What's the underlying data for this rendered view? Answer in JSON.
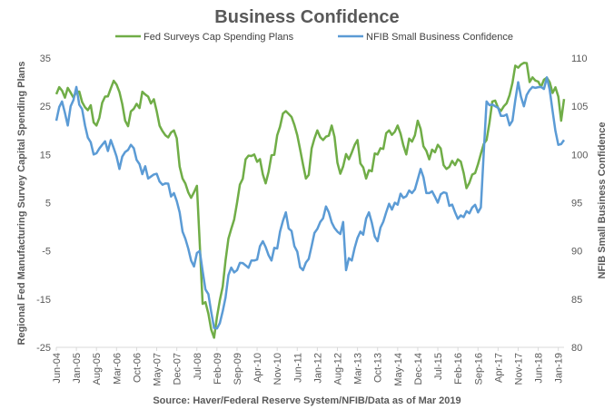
{
  "chart_data": {
    "type": "line",
    "title": "Business Confidence",
    "source": "Source: Haver/Federal Reserve System/NFIB/Data as of Mar 2019",
    "ylabel_left": "Regional Fed Manufacturing Survey Capital Spending Plans",
    "ylabel_right": "NFIB Small Business Confidence",
    "ylim_left": [
      -25,
      35
    ],
    "ylim_right": [
      80,
      110
    ],
    "yticks_left": [
      35,
      25,
      15,
      5,
      -5,
      -15,
      -25
    ],
    "yticks_right": [
      110,
      105,
      100,
      95,
      90,
      85,
      80
    ],
    "x_tick_labels": [
      "Jun-04",
      "Jan-05",
      "Aug-05",
      "Mar-06",
      "Oct-06",
      "May-07",
      "Dec-07",
      "Jul-08",
      "Feb-09",
      "Sep-09",
      "Apr-10",
      "Nov-10",
      "Jun-11",
      "Jan-12",
      "Aug-12",
      "Mar-13",
      "Oct-13",
      "May-14",
      "Dec-14",
      "Jul-15",
      "Feb-16",
      "Sep-16",
      "Apr-17",
      "Nov-17",
      "Jun-18",
      "Jan-19"
    ],
    "x_start": "Jun-04",
    "x_end": "Mar-19",
    "grid": false,
    "legend_position": "top",
    "series": [
      {
        "name": "Fed Surveys Cap Spending Plans",
        "axis": "left",
        "color": "#70AD47",
        "anchors": [
          [
            "Jun-04",
            27.5
          ],
          [
            "Jan-05",
            28
          ],
          [
            "Aug-05",
            21
          ],
          [
            "Nov-05",
            27
          ],
          [
            "Mar-06",
            29.5
          ],
          [
            "Jun-06",
            22
          ],
          [
            "Oct-06",
            25.5
          ],
          [
            "Feb-07",
            27
          ],
          [
            "May-07",
            24
          ],
          [
            "Aug-07",
            19
          ],
          [
            "Nov-07",
            20
          ],
          [
            "Feb-08",
            10
          ],
          [
            "May-08",
            6
          ],
          [
            "Jul-08",
            8.5
          ],
          [
            "Sep-08",
            -16
          ],
          [
            "Nov-08",
            -18
          ],
          [
            "Jan-09",
            -23
          ],
          [
            "May-09",
            -7
          ],
          [
            "Sep-09",
            5
          ],
          [
            "Dec-09",
            14
          ],
          [
            "Mar-10",
            15
          ],
          [
            "Jul-10",
            9
          ],
          [
            "Nov-10",
            19
          ],
          [
            "Feb-11",
            24
          ],
          [
            "Jun-11",
            19
          ],
          [
            "Sep-11",
            10
          ],
          [
            "Jan-12",
            20
          ],
          [
            "Mar-12",
            18
          ],
          [
            "Jun-12",
            21
          ],
          [
            "Sep-12",
            11
          ],
          [
            "Dec-12",
            14
          ],
          [
            "Mar-13",
            18
          ],
          [
            "Jun-13",
            10
          ],
          [
            "Oct-13",
            15
          ],
          [
            "Feb-14",
            20
          ],
          [
            "May-14",
            21
          ],
          [
            "Aug-14",
            15
          ],
          [
            "Dec-14",
            22
          ],
          [
            "Apr-15",
            14
          ],
          [
            "Jul-15",
            17
          ],
          [
            "Oct-15",
            12
          ],
          [
            "Feb-16",
            14
          ],
          [
            "May-16",
            8
          ],
          [
            "Sep-16",
            13
          ],
          [
            "Dec-16",
            18
          ],
          [
            "Feb-17",
            26
          ],
          [
            "Jun-17",
            25
          ],
          [
            "Nov-17",
            33
          ],
          [
            "Jan-18",
            34
          ],
          [
            "Apr-18",
            31
          ],
          [
            "Jul-18",
            29
          ],
          [
            "Oct-18",
            30
          ],
          [
            "Jan-19",
            27
          ],
          [
            "Feb-19",
            22
          ],
          [
            "Mar-19",
            26.5
          ]
        ]
      },
      {
        "name": "NFIB Small Business Confidence",
        "axis": "right",
        "color": "#5B9BD5",
        "anchors": [
          [
            "Jun-04",
            103.5
          ],
          [
            "Aug-04",
            105.5
          ],
          [
            "Oct-04",
            103
          ],
          [
            "Jan-05",
            107
          ],
          [
            "Apr-05",
            103
          ],
          [
            "Jul-05",
            100
          ],
          [
            "Oct-05",
            101
          ],
          [
            "Jan-06",
            101.5
          ],
          [
            "Apr-06",
            98.5
          ],
          [
            "Aug-06",
            101
          ],
          [
            "Nov-06",
            99
          ],
          [
            "Feb-07",
            97.5
          ],
          [
            "May-07",
            98
          ],
          [
            "Aug-07",
            97
          ],
          [
            "Nov-07",
            96
          ],
          [
            "Feb-08",
            92
          ],
          [
            "May-08",
            89
          ],
          [
            "Aug-08",
            90
          ],
          [
            "Oct-08",
            86
          ],
          [
            "Jan-09",
            82
          ],
          [
            "Mar-09",
            82.5
          ],
          [
            "Jun-09",
            87.5
          ],
          [
            "Sep-09",
            88
          ],
          [
            "Dec-09",
            88.5
          ],
          [
            "Mar-10",
            89
          ],
          [
            "Jun-10",
            91
          ],
          [
            "Sep-10",
            89
          ],
          [
            "Dec-10",
            92
          ],
          [
            "Feb-11",
            94
          ],
          [
            "May-11",
            90.5
          ],
          [
            "Aug-11",
            88
          ],
          [
            "Nov-11",
            90.5
          ],
          [
            "Feb-12",
            93
          ],
          [
            "May-12",
            94
          ],
          [
            "Aug-12",
            92
          ],
          [
            "Oct-12",
            93
          ],
          [
            "Nov-12",
            88
          ],
          [
            "Jan-13",
            89
          ],
          [
            "Apr-13",
            92
          ],
          [
            "Jul-13",
            94
          ],
          [
            "Oct-13",
            91
          ],
          [
            "Jan-14",
            94
          ],
          [
            "Apr-14",
            95
          ],
          [
            "Jul-14",
            95.5
          ],
          [
            "Oct-14",
            96
          ],
          [
            "Jan-15",
            98.5
          ],
          [
            "Apr-15",
            96
          ],
          [
            "Jul-15",
            95
          ],
          [
            "Oct-15",
            96
          ],
          [
            "Jan-16",
            94
          ],
          [
            "Apr-16",
            93.5
          ],
          [
            "Jul-16",
            94.5
          ],
          [
            "Oct-16",
            94.5
          ],
          [
            "Dec-16",
            105.5
          ],
          [
            "Mar-17",
            105
          ],
          [
            "Jun-17",
            104
          ],
          [
            "Sep-17",
            103.5
          ],
          [
            "Nov-17",
            107.5
          ],
          [
            "Jan-18",
            105
          ],
          [
            "Apr-18",
            107
          ],
          [
            "Jul-18",
            107
          ],
          [
            "Sep-18",
            108
          ],
          [
            "Nov-18",
            104.5
          ],
          [
            "Jan-19",
            101
          ],
          [
            "Mar-19",
            101.5
          ]
        ]
      }
    ]
  }
}
